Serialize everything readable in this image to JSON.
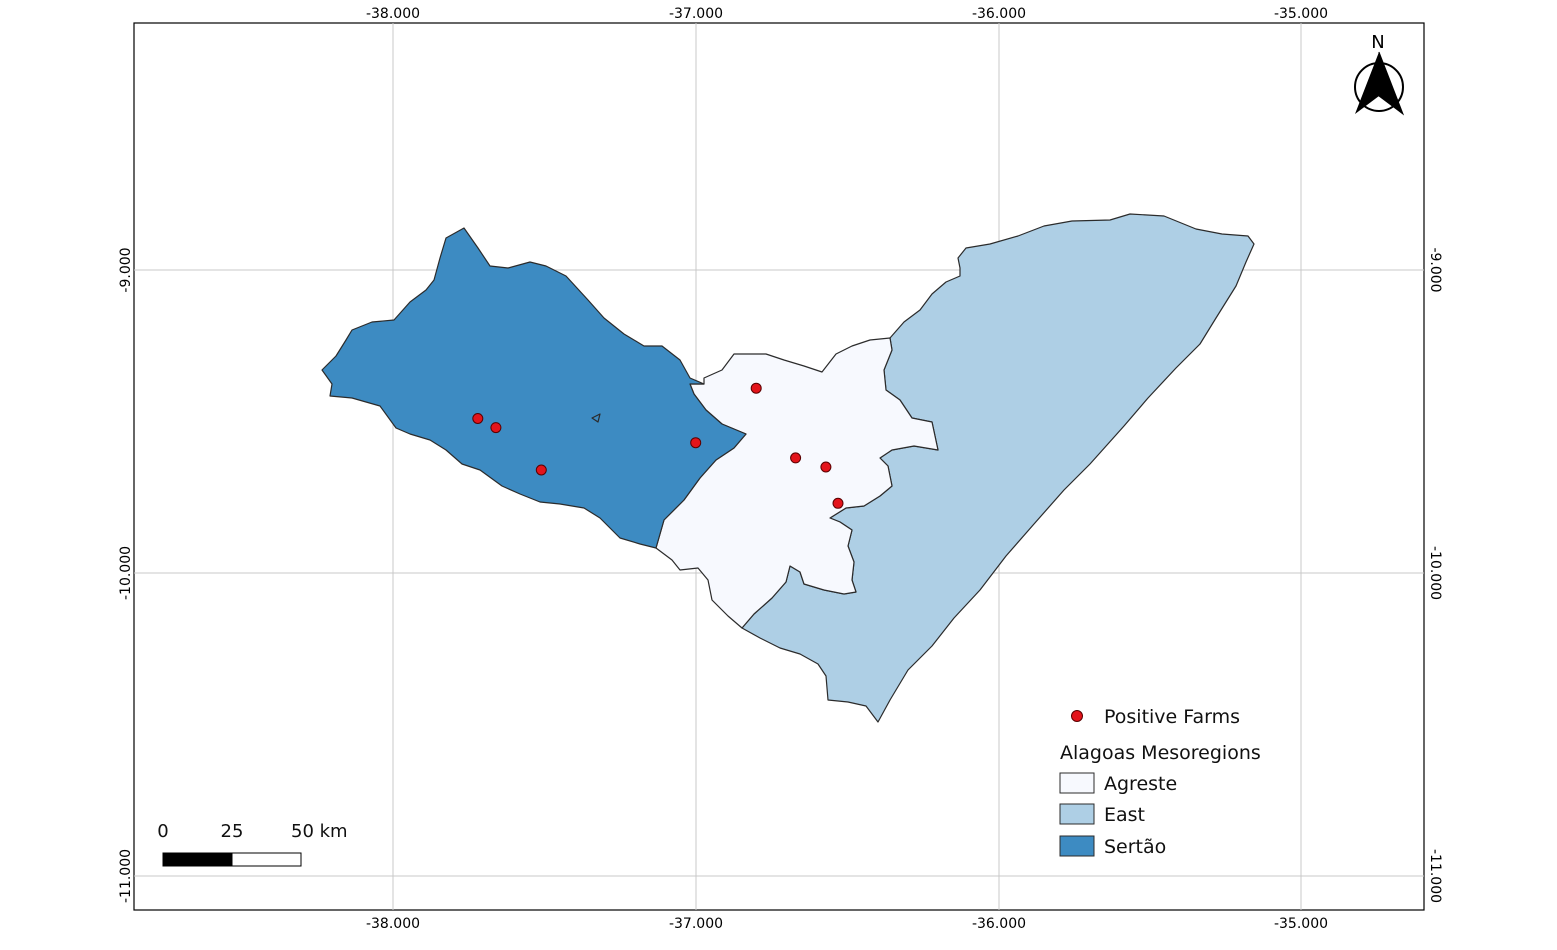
{
  "map": {
    "axis_ticks": {
      "longitude": [
        "-38.000",
        "-37.000",
        "-36.000",
        "-35.000"
      ],
      "latitude": [
        "-9.000",
        "-10.000",
        "-11.000"
      ]
    },
    "north_arrow": {
      "label": "N",
      "icon": "north-arrow-icon"
    },
    "legend": {
      "point_label": "Positive Farms",
      "point_color": "#e3141b",
      "group_title": "Alagoas Mesoregions",
      "classes": [
        {
          "label": "Agreste",
          "color": "#f7f9fe"
        },
        {
          "label": "East",
          "color": "#aecfe5"
        },
        {
          "label": "Sertão",
          "color": "#3d8bc2"
        }
      ]
    },
    "scale_bar": {
      "labels": [
        "0",
        "25",
        "50 km"
      ]
    },
    "positive_farms": [
      {
        "lon": -37.72,
        "lat": -9.49
      },
      {
        "lon": -37.66,
        "lat": -9.52
      },
      {
        "lon": -37.51,
        "lat": -9.66
      },
      {
        "lon": -37.0,
        "lat": -9.57
      },
      {
        "lon": -36.8,
        "lat": -9.39
      },
      {
        "lon": -36.67,
        "lat": -9.62
      },
      {
        "lon": -36.57,
        "lat": -9.65
      },
      {
        "lon": -36.53,
        "lat": -9.77
      }
    ]
  }
}
